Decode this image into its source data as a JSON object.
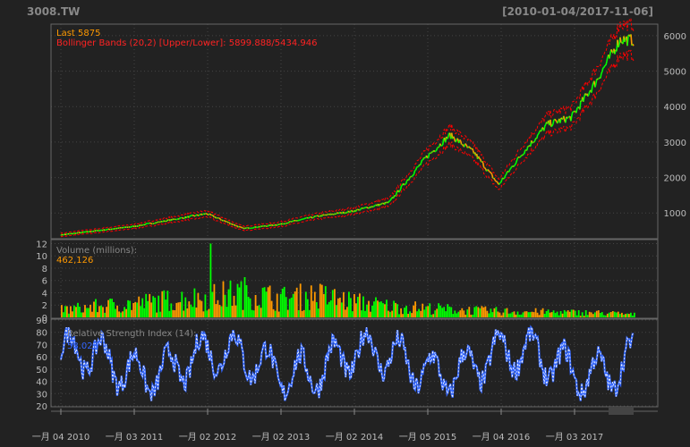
{
  "header": {
    "symbol": "3008.TW",
    "date_range": "[2010-01-04/2017-11-06]"
  },
  "colors": {
    "background": "#222222",
    "up": "#00ff00",
    "down": "#ff9900",
    "bands": "#ff0000",
    "last_label": "#ff9900",
    "rsi": "#3366ff",
    "grid": "#444444",
    "axis_text": "#bbbbbb"
  },
  "price_panel": {
    "last_label": "Last 5875",
    "bbands_label": "Bollinger Bands (20,2) [Upper/Lower]: 5899.888/5434.946"
  },
  "volume_panel": {
    "title": "Volume (millions):",
    "value": "462,126"
  },
  "rsi_panel": {
    "title": "Relative Strength Index (14):",
    "value": "58.023"
  },
  "x_axis_labels": [
    "一月 04 2010",
    "一月 03 2011",
    "一月 02 2012",
    "一月 02 2013",
    "一月 02 2014",
    "一月 05 2015",
    "一月 04 2016",
    "一月 03 2017"
  ],
  "chart_data": [
    {
      "type": "line",
      "title": "3008.TW",
      "subtitle": "[2010-01-04/2017-11-06]",
      "y_ticks": [
        1000,
        2000,
        3000,
        4000,
        5000,
        6000
      ],
      "ylim": [
        300,
        6300
      ],
      "x": [
        "2010-01",
        "2010-07",
        "2011-01",
        "2011-07",
        "2012-01",
        "2012-07",
        "2013-01",
        "2013-07",
        "2014-01",
        "2014-07",
        "2015-01",
        "2015-05",
        "2015-09",
        "2016-01",
        "2016-05",
        "2016-09",
        "2017-01",
        "2017-05",
        "2017-09",
        "2017-11"
      ],
      "series": [
        {
          "name": "Last 5875",
          "values": [
            380,
            500,
            620,
            800,
            980,
            560,
            680,
            900,
            1050,
            1300,
            2550,
            3200,
            2700,
            1800,
            2700,
            3500,
            3700,
            4700,
            5900,
            5875
          ]
        }
      ],
      "bbands": {
        "upper": 5899.888,
        "lower": 5434.946
      }
    },
    {
      "type": "bar",
      "title": "Volume (millions):",
      "y_ticks": [
        0,
        2,
        4,
        6,
        8,
        10,
        12
      ],
      "ylim": [
        0,
        12.5
      ],
      "x": [
        "2010-01",
        "2010-07",
        "2011-01",
        "2011-07",
        "2012-01",
        "2012-07",
        "2013-01",
        "2013-07",
        "2014-01",
        "2014-07",
        "2015-01",
        "2015-07",
        "2016-01",
        "2016-07",
        "2017-01",
        "2017-07",
        "2017-11"
      ],
      "values": [
        1.2,
        1.8,
        2.2,
        2.8,
        3.2,
        4.0,
        3.0,
        3.5,
        2.5,
        1.8,
        1.5,
        1.2,
        1.0,
        0.9,
        0.8,
        0.7,
        0.46
      ],
      "max_spike": 12,
      "last": 0.462126
    },
    {
      "type": "line",
      "title": "Relative Strength Index (14):",
      "y_ticks": [
        20,
        30,
        40,
        50,
        60,
        70,
        80,
        90
      ],
      "ylim": [
        20,
        90
      ],
      "last": 58.023
    }
  ]
}
